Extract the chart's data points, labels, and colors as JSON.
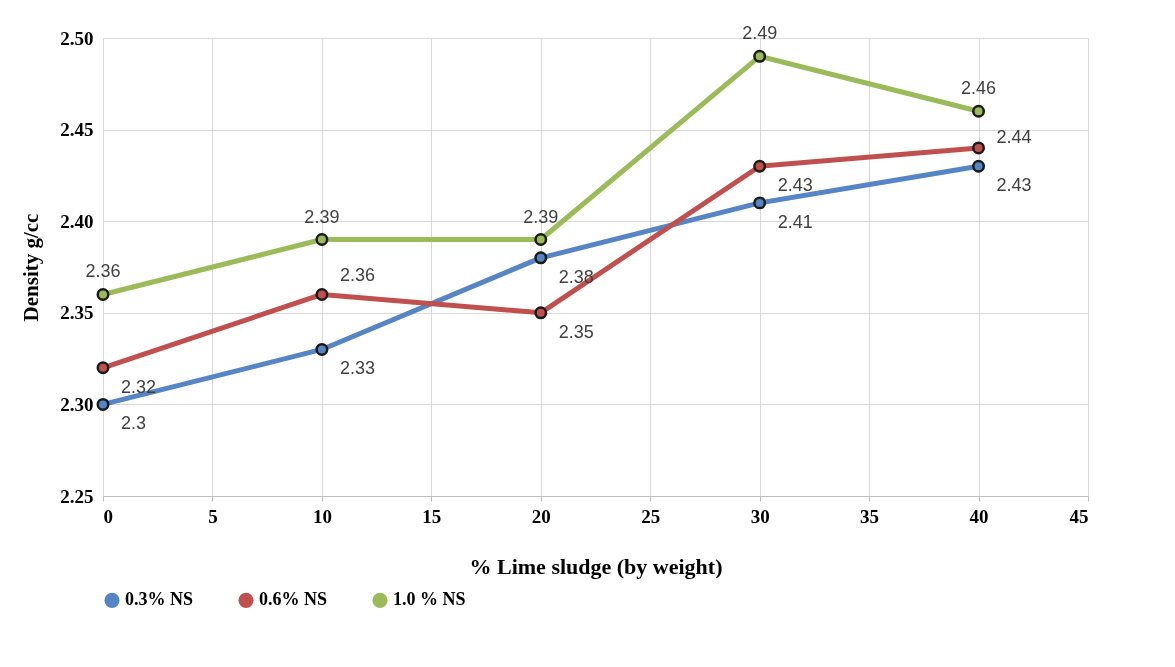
{
  "chart_data": {
    "type": "line",
    "xlabel": "% Lime sludge  (by weight)",
    "ylabel": "Density g/cc",
    "x": [
      0,
      10,
      20,
      30,
      40
    ],
    "series": [
      {
        "name": "0.3% NS",
        "color": "#5585c5",
        "values": [
          2.3,
          2.33,
          2.38,
          2.41,
          2.43
        ]
      },
      {
        "name": "0.6% NS",
        "color": "#c0504d",
        "values": [
          2.32,
          2.36,
          2.35,
          2.43,
          2.44
        ]
      },
      {
        "name": "1.0 % NS",
        "color": "#9bbb59",
        "values": [
          2.36,
          2.39,
          2.39,
          2.49,
          2.46
        ]
      }
    ],
    "xlim": [
      0,
      45
    ],
    "xticks": [
      0,
      5,
      10,
      15,
      20,
      25,
      30,
      35,
      40,
      45
    ],
    "ylim": [
      2.25,
      2.5
    ],
    "yticks": [
      2.25,
      {
        "value": 2.3,
        "label": "2.30"
      },
      2.35,
      {
        "value": 2.4,
        "label": "2.40"
      },
      2.45,
      {
        "value": 2.5,
        "label": "2.50"
      }
    ],
    "grid": true,
    "legend": "bottom",
    "marker": "circle",
    "line_style": "solid",
    "data_labels": true
  }
}
